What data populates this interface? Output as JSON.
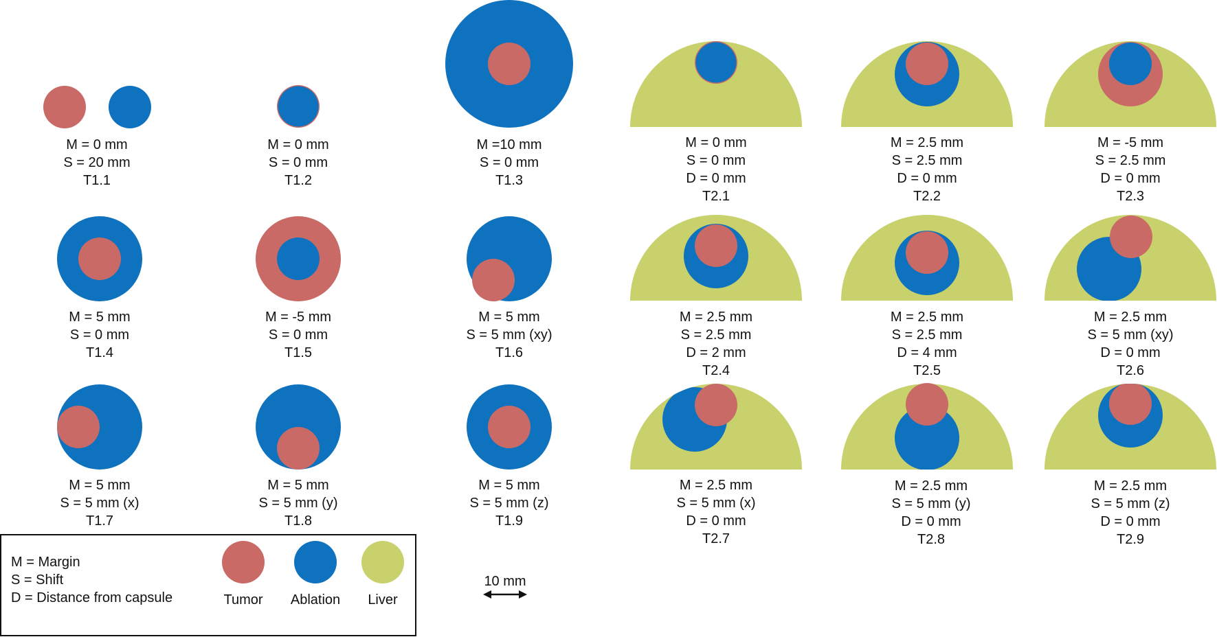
{
  "colors": {
    "tumor": "#c96a66",
    "ablation": "#0e72be",
    "liver": "#c8d16b"
  },
  "cases": [
    {
      "id": "T1.1",
      "lines": [
        "M = 0 mm",
        "S = 20 mm",
        "T1.1"
      ]
    },
    {
      "id": "T1.2",
      "lines": [
        "M = 0 mm",
        "S = 0 mm",
        "T1.2"
      ]
    },
    {
      "id": "T1.3",
      "lines": [
        "M =10 mm",
        "S = 0 mm",
        "T1.3"
      ]
    },
    {
      "id": "T2.1",
      "lines": [
        "M = 0 mm",
        "S = 0 mm",
        "D = 0 mm",
        "T2.1"
      ]
    },
    {
      "id": "T2.2",
      "lines": [
        "M = 2.5 mm",
        "S = 2.5 mm",
        "D = 0 mm",
        "T2.2"
      ]
    },
    {
      "id": "T2.3",
      "lines": [
        "M = -5 mm",
        "S = 2.5 mm",
        "D = 0 mm",
        "T2.3"
      ]
    },
    {
      "id": "T1.4",
      "lines": [
        "M = 5 mm",
        "S = 0 mm",
        "T1.4"
      ]
    },
    {
      "id": "T1.5",
      "lines": [
        "M = -5 mm",
        "S = 0 mm",
        "T1.5"
      ]
    },
    {
      "id": "T1.6",
      "lines": [
        "M = 5 mm",
        "S = 5 mm (xy)",
        "T1.6"
      ]
    },
    {
      "id": "T2.4",
      "lines": [
        "M = 2.5 mm",
        "S = 2.5 mm",
        "D = 2 mm",
        "T2.4"
      ]
    },
    {
      "id": "T2.5",
      "lines": [
        "M = 2.5 mm",
        "S = 2.5 mm",
        "D = 4 mm",
        "T2.5"
      ]
    },
    {
      "id": "T2.6",
      "lines": [
        "M = 2.5 mm",
        "S = 5 mm (xy)",
        "D = 0 mm",
        "T2.6"
      ]
    },
    {
      "id": "T1.7",
      "lines": [
        "M = 5 mm",
        "S = 5 mm (x)",
        "T1.7"
      ]
    },
    {
      "id": "T1.8",
      "lines": [
        "M = 5 mm",
        "S = 5 mm (y)",
        "T1.8"
      ]
    },
    {
      "id": "T1.9",
      "lines": [
        "M = 5 mm",
        "S = 5 mm (z)",
        "T1.9"
      ]
    },
    {
      "id": "T2.7",
      "lines": [
        "M = 2.5 mm",
        "S = 5 mm (x)",
        "D = 0 mm",
        "T2.7"
      ]
    },
    {
      "id": "T2.8",
      "lines": [
        "M = 2.5 mm",
        "S = 5 mm (y)",
        "D = 0 mm",
        "T2.8"
      ]
    },
    {
      "id": "T2.9",
      "lines": [
        "M = 2.5 mm",
        "S = 5 mm (z)",
        "D = 0 mm",
        "T2.9"
      ]
    }
  ],
  "legend": {
    "definitions": [
      "M = Margin",
      "S = Shift",
      "D = Distance from capsule"
    ],
    "tumor": "Tumor",
    "ablation": "Ablation",
    "liver": "Liver"
  },
  "scale_bar": {
    "label": "10 mm"
  }
}
